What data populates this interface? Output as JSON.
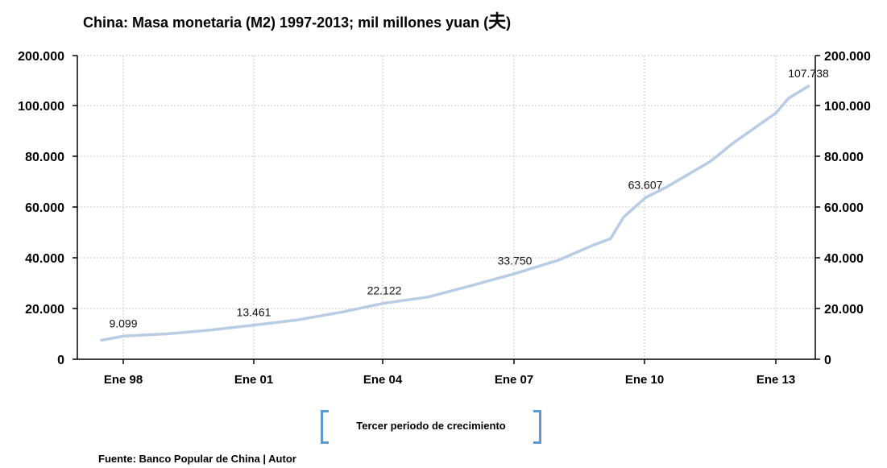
{
  "chart_data": {
    "type": "line",
    "title": "China: Masa monetaria (M2) 1997-2013; mil millones yuan (",
    "title_symbol": "夫",
    "title_end": ")",
    "xlabel": "",
    "ylabel": "",
    "y_tick_labels": [
      "0",
      "20.000",
      "40.000",
      "60.000",
      "80.000",
      "100.000",
      "200.000"
    ],
    "x_tick_labels": [
      "Ene 98",
      "Ene 01",
      "Ene 04",
      "Ene 07",
      "Ene 10",
      "Ene 13"
    ],
    "grid": true,
    "series": [
      {
        "color": "#b8cce4",
        "x": [
          1997.5,
          1998.0,
          1999.0,
          2000.0,
          2001.0,
          2002.0,
          2003.0,
          2004.0,
          2005.0,
          2006.0,
          2007.0,
          2008.0,
          2008.8,
          2009.2,
          2009.5,
          2010.0,
          2010.5,
          2011.0,
          2011.5,
          2012.0,
          2012.5,
          2013.0,
          2013.3,
          2013.75
        ],
        "y": [
          7500,
          9099,
          10000,
          11500,
          13461,
          15500,
          18500,
          22122,
          24500,
          29000,
          33750,
          39000,
          45000,
          47500,
          56000,
          63607,
          68000,
          73000,
          78000,
          85000,
          91000,
          97000,
          103000,
          107738
        ]
      }
    ],
    "data_labels": [
      {
        "x": 1998.0,
        "y": 9099,
        "text": "9.099"
      },
      {
        "x": 2001.0,
        "y": 13461,
        "text": "13.461"
      },
      {
        "x": 2004.0,
        "y": 22122,
        "text": "22.122"
      },
      {
        "x": 2007.0,
        "y": 33750,
        "text": "33.750"
      },
      {
        "x": 2010.0,
        "y": 63607,
        "text": "63.607"
      },
      {
        "x": 2013.75,
        "y": 107738,
        "text": "107.738"
      }
    ],
    "legend_label": "Tercer periodo de crecimiento",
    "source": "Fuente: Banco Popular de China  |  Autor"
  }
}
